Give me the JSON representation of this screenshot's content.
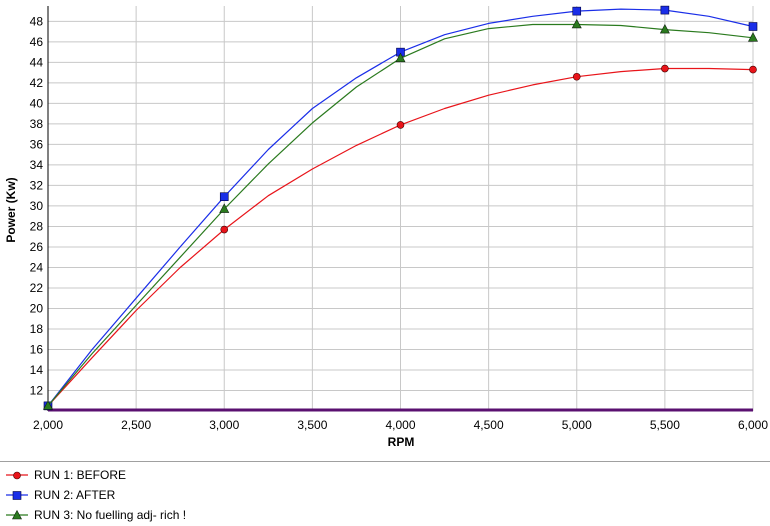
{
  "chart_data": {
    "type": "line",
    "xlabel": "RPM",
    "ylabel": "Power (Kw)",
    "xlim": [
      2000,
      6000
    ],
    "ylim": [
      10,
      49.5
    ],
    "x_ticks": [
      2000,
      2500,
      3000,
      3500,
      4000,
      4500,
      5000,
      5500,
      6000
    ],
    "x_tick_labels": [
      "2,000",
      "2,500",
      "3,000",
      "3,500",
      "4,000",
      "4,500",
      "5,000",
      "5,500",
      "6,000"
    ],
    "y_ticks": [
      12,
      14,
      16,
      18,
      20,
      22,
      24,
      26,
      28,
      30,
      32,
      34,
      36,
      38,
      40,
      42,
      44,
      46,
      48
    ],
    "y_tick_labels": [
      "12",
      "14",
      "16",
      "18",
      "20",
      "22",
      "24",
      "26",
      "28",
      "30",
      "32",
      "34",
      "36",
      "38",
      "40",
      "42",
      "44",
      "46",
      "48"
    ],
    "grid": true,
    "legend_position": "bottom",
    "baseline": {
      "y": 10,
      "color": "#5a1070"
    },
    "series": [
      {
        "name": "RUN 1: BEFORE",
        "color": "#e8141a",
        "marker": "circle",
        "x": [
          2000,
          2250,
          2500,
          2750,
          3000,
          3250,
          3500,
          3750,
          4000,
          4250,
          4500,
          4750,
          5000,
          5250,
          5500,
          5750,
          6000
        ],
        "y": [
          10.5,
          15.2,
          19.8,
          24.0,
          27.7,
          31.0,
          33.6,
          35.9,
          37.9,
          39.5,
          40.8,
          41.8,
          42.6,
          43.1,
          43.4,
          43.4,
          43.3
        ],
        "marker_x": [
          2000,
          3000,
          4000,
          5000,
          5500,
          6000
        ],
        "marker_y": [
          10.5,
          27.7,
          37.9,
          42.6,
          43.4,
          43.3
        ]
      },
      {
        "name": "RUN 2: AFTER",
        "color": "#1a2ee8",
        "marker": "square",
        "x": [
          2000,
          2250,
          2500,
          2750,
          3000,
          3250,
          3500,
          3750,
          4000,
          4250,
          4500,
          4750,
          5000,
          5250,
          5500,
          5750,
          6000
        ],
        "y": [
          10.5,
          16.0,
          21.0,
          26.0,
          30.9,
          35.5,
          39.5,
          42.5,
          45.0,
          46.7,
          47.8,
          48.5,
          49.0,
          49.2,
          49.1,
          48.5,
          47.5
        ],
        "marker_x": [
          2000,
          3000,
          4000,
          5000,
          5500,
          6000
        ],
        "marker_y": [
          10.5,
          30.9,
          45.0,
          49.0,
          49.1,
          47.5
        ]
      },
      {
        "name": "RUN 3: No fuelling adj- rich !",
        "color": "#2a7a1e",
        "marker": "triangle",
        "x": [
          2000,
          2250,
          2500,
          2750,
          3000,
          3250,
          3500,
          3750,
          4000,
          4250,
          4500,
          4750,
          5000,
          5250,
          5500,
          5750,
          6000
        ],
        "y": [
          10.5,
          15.6,
          20.3,
          25.0,
          29.7,
          34.1,
          38.1,
          41.6,
          44.4,
          46.3,
          47.3,
          47.7,
          47.7,
          47.6,
          47.2,
          46.9,
          46.4
        ],
        "marker_x": [
          2000,
          3000,
          4000,
          5000,
          5500,
          6000
        ],
        "marker_y": [
          10.5,
          29.7,
          44.4,
          47.7,
          47.2,
          46.4
        ]
      }
    ]
  }
}
